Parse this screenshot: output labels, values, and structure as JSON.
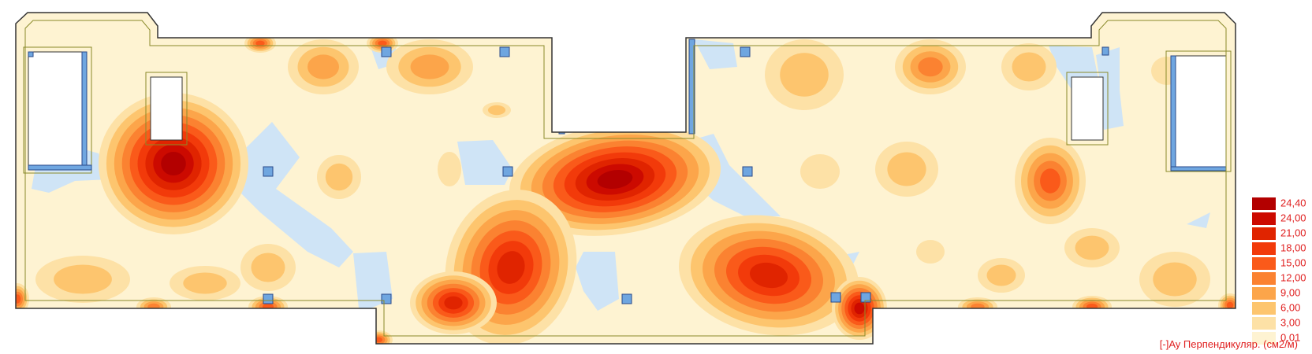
{
  "chart_data": {
    "type": "heatmap",
    "legend": {
      "title": "[-]Ay Перпендикуляр. (см2/м)",
      "levels": [
        {
          "label": "24,40",
          "value": 24.4,
          "color": "#b30000"
        },
        {
          "label": "24,00",
          "value": 24.0,
          "color": "#cc0a00"
        },
        {
          "label": "21,00",
          "value": 21.0,
          "color": "#e02400"
        },
        {
          "label": "18,00",
          "value": 18.0,
          "color": "#f23a0a"
        },
        {
          "label": "15,00",
          "value": 15.0,
          "color": "#fa5a1a"
        },
        {
          "label": "12,00",
          "value": 12.0,
          "color": "#fb8231"
        },
        {
          "label": "9,00",
          "value": 9.0,
          "color": "#fca54a"
        },
        {
          "label": "6,00",
          "value": 6.0,
          "color": "#fdc56e"
        },
        {
          "label": "3,00",
          "value": 3.0,
          "color": "#fde1a6"
        },
        {
          "label": "0,01",
          "value": 0.01,
          "color": "#fef3d2"
        }
      ],
      "below_min_color": "#cfe4f6"
    },
    "colors": {
      "outline": "#333333",
      "inner_line": "#8a8a2a",
      "column_fill": "#6fa6e0",
      "column_stroke": "#2a4a8a"
    }
  }
}
